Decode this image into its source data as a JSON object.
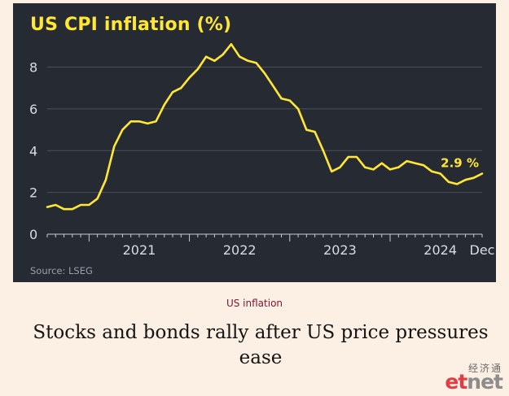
{
  "chart": {
    "title": "US CPI inflation (%)",
    "source": "Source: LSEG",
    "end_annotation": "2.9 %"
  },
  "article": {
    "kicker": "US inflation",
    "headline": "Stocks and bonds rally after US price pressures ease"
  },
  "logo": {
    "chinese": "经济通",
    "brand_left": "et",
    "brand_right": "net"
  },
  "colors": {
    "line": "#ffe733",
    "card_bg": "#262a33",
    "page_bg": "#fcefe3",
    "kicker": "#7a1635"
  },
  "chart_data": {
    "type": "line",
    "title": "US CPI inflation (%)",
    "xlabel": "",
    "ylabel": "",
    "ylim": [
      0,
      9.5
    ],
    "yticks": [
      0,
      2,
      4,
      6,
      8
    ],
    "ytick_labels": [
      "0",
      "2",
      "4",
      "6",
      "8"
    ],
    "xtick_labels": [
      "2021",
      "2022",
      "2023",
      "2024",
      "Dec"
    ],
    "xlim": [
      "2020-08",
      "2024-12"
    ],
    "grid": true,
    "series": [
      {
        "x": [
          "2020-08",
          "2020-09",
          "2020-10",
          "2020-11",
          "2020-12",
          "2021-01",
          "2021-02",
          "2021-03",
          "2021-04",
          "2021-05",
          "2021-06",
          "2021-07",
          "2021-08",
          "2021-09",
          "2021-10",
          "2021-11",
          "2021-12",
          "2022-01",
          "2022-02",
          "2022-03",
          "2022-04",
          "2022-05",
          "2022-06",
          "2022-07",
          "2022-08",
          "2022-09",
          "2022-10",
          "2022-11",
          "2022-12",
          "2023-01",
          "2023-02",
          "2023-03",
          "2023-04",
          "2023-05",
          "2023-06",
          "2023-07",
          "2023-08",
          "2023-09",
          "2023-10",
          "2023-11",
          "2023-12",
          "2024-01",
          "2024-02",
          "2024-03",
          "2024-04",
          "2024-05",
          "2024-06",
          "2024-07",
          "2024-08",
          "2024-09",
          "2024-10",
          "2024-11",
          "2024-12"
        ],
        "values": [
          1.3,
          1.4,
          1.2,
          1.2,
          1.4,
          1.4,
          1.7,
          2.6,
          4.2,
          5.0,
          5.4,
          5.4,
          5.3,
          5.4,
          6.2,
          6.8,
          7.0,
          7.5,
          7.9,
          8.5,
          8.3,
          8.6,
          9.1,
          8.5,
          8.3,
          8.2,
          7.7,
          7.1,
          6.5,
          6.4,
          6.0,
          5.0,
          4.9,
          4.0,
          3.0,
          3.2,
          3.7,
          3.7,
          3.2,
          3.1,
          3.4,
          3.1,
          3.2,
          3.5,
          3.4,
          3.3,
          3.0,
          2.9,
          2.5,
          2.4,
          2.6,
          2.7,
          2.9
        ]
      }
    ]
  }
}
